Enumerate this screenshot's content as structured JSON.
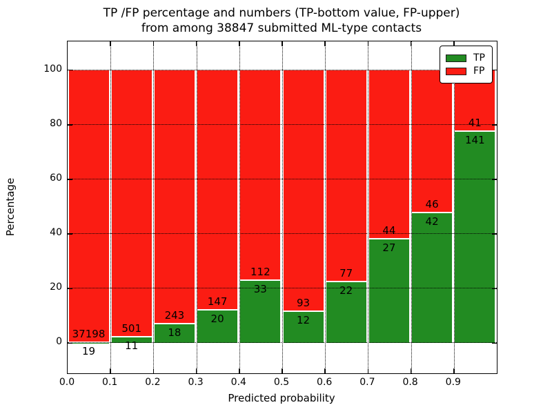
{
  "chart_data": {
    "type": "bar",
    "variant": "stacked-percentage",
    "title_line1": "TP /FP percentage and numbers (TP-bottom value, FP-upper)",
    "title_line2": "from among 38847 submitted ML-type contacts",
    "total_contacts": 38847,
    "xlabel": "Predicted probability",
    "ylabel": "Percentage",
    "x_tick_labels": [
      "0.0",
      "0.1",
      "0.2",
      "0.3",
      "0.4",
      "0.5",
      "0.6",
      "0.7",
      "0.8",
      "0.9"
    ],
    "y_ticks": [
      0,
      20,
      40,
      60,
      80,
      100
    ],
    "xlim": [
      0.0,
      1.0
    ],
    "ylim": [
      -11,
      110.5
    ],
    "grid": {
      "visible": true,
      "style": "dotted",
      "color": "#000000",
      "axes": "both"
    },
    "categories": [
      "0.0-0.1",
      "0.1-0.2",
      "0.2-0.3",
      "0.3-0.4",
      "0.4-0.5",
      "0.5-0.6",
      "0.6-0.7",
      "0.7-0.8",
      "0.8-0.9",
      "0.9-1.0"
    ],
    "series": [
      {
        "name": "TP",
        "position": "bottom",
        "color": "#228b22",
        "values": [
          19,
          11,
          18,
          20,
          33,
          12,
          22,
          27,
          42,
          141
        ]
      },
      {
        "name": "FP",
        "position": "top",
        "color": "#fb1c13",
        "values": [
          37198,
          501,
          243,
          147,
          112,
          93,
          77,
          44,
          46,
          41
        ]
      }
    ],
    "bar_total_percent": 100,
    "legend": {
      "position": "upper right",
      "entries": [
        {
          "label": "TP",
          "color": "#228b22"
        },
        {
          "label": "FP",
          "color": "#fb1c13"
        }
      ]
    }
  }
}
